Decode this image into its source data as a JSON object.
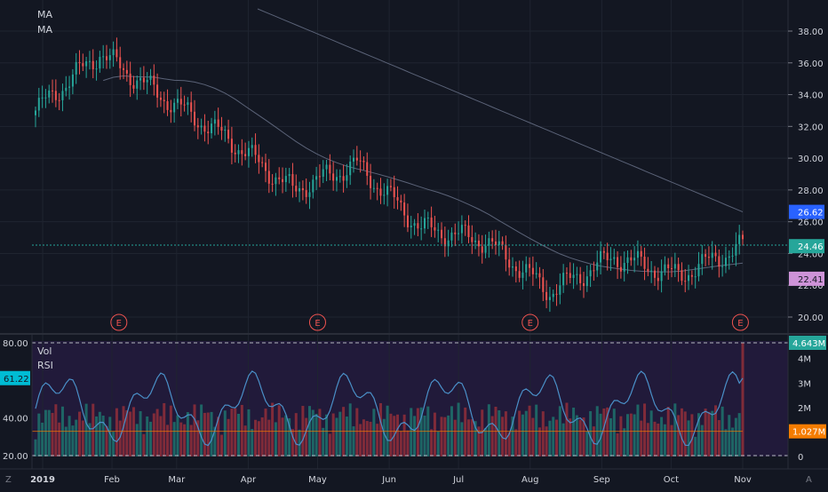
{
  "legend": {
    "price": [
      "MA",
      "MA"
    ],
    "lower": [
      "Vol",
      "RSI"
    ]
  },
  "price_axis": {
    "ticks": [
      "38.00",
      "36.00",
      "34.00",
      "32.00",
      "30.00",
      "28.00",
      "26.00",
      "24.00",
      "22.00",
      "20.00"
    ],
    "badges": [
      {
        "label": "26.62",
        "color": "#2962ff"
      },
      {
        "label": "24.46",
        "color": "#26a69a"
      },
      {
        "label": "22.41",
        "color": "#ce93d8"
      }
    ]
  },
  "volume_axis": {
    "ticks": [
      "4M",
      "3M",
      "2M",
      "1M",
      "0"
    ],
    "badges": [
      {
        "label": "4.643M",
        "color": "#26a69a"
      },
      {
        "label": "1.027M",
        "color": "#f57c00"
      }
    ]
  },
  "rsi_axis": {
    "ticks": [
      "80.00",
      "40.00",
      "20.00"
    ],
    "badge": {
      "label": "61.22",
      "color": "#00bcd4"
    }
  },
  "time_axis": [
    "2019",
    "Feb",
    "Mar",
    "Apr",
    "May",
    "Jun",
    "Jul",
    "Aug",
    "Sep",
    "Oct",
    "Nov"
  ],
  "earnings_marker": "E",
  "corner_labels": {
    "left": "Z",
    "right": "A"
  },
  "chart_data": {
    "type": "candlestick",
    "period": "2019-01-02 to 2019-11-01, daily",
    "ylim": [
      19.4,
      39.4
    ],
    "current_price": 24.46,
    "moving_averages": [
      {
        "value": 26.62,
        "color": "#2962ff"
      },
      {
        "value": 22.41,
        "color": "#ce93d8"
      }
    ],
    "earnings_dates": [
      "2019-02-04",
      "2019-05-01",
      "2019-08-01",
      "2019-10-31"
    ],
    "monthly_closes": {
      "x": [
        "Jan",
        "Feb",
        "Mar",
        "Apr",
        "May",
        "Jun",
        "Jul",
        "Aug",
        "Sep",
        "Oct",
        "Nov"
      ],
      "y": [
        36.6,
        33.8,
        31.2,
        28.0,
        29.6,
        25.6,
        24.8,
        21.6,
        23.8,
        22.6,
        24.46
      ]
    },
    "volume": {
      "unit": "M",
      "ylim": [
        0,
        4.643
      ],
      "last": 4.643,
      "average": 1.027
    },
    "rsi": {
      "ylim": [
        20,
        80
      ],
      "last": 61.22
    }
  }
}
